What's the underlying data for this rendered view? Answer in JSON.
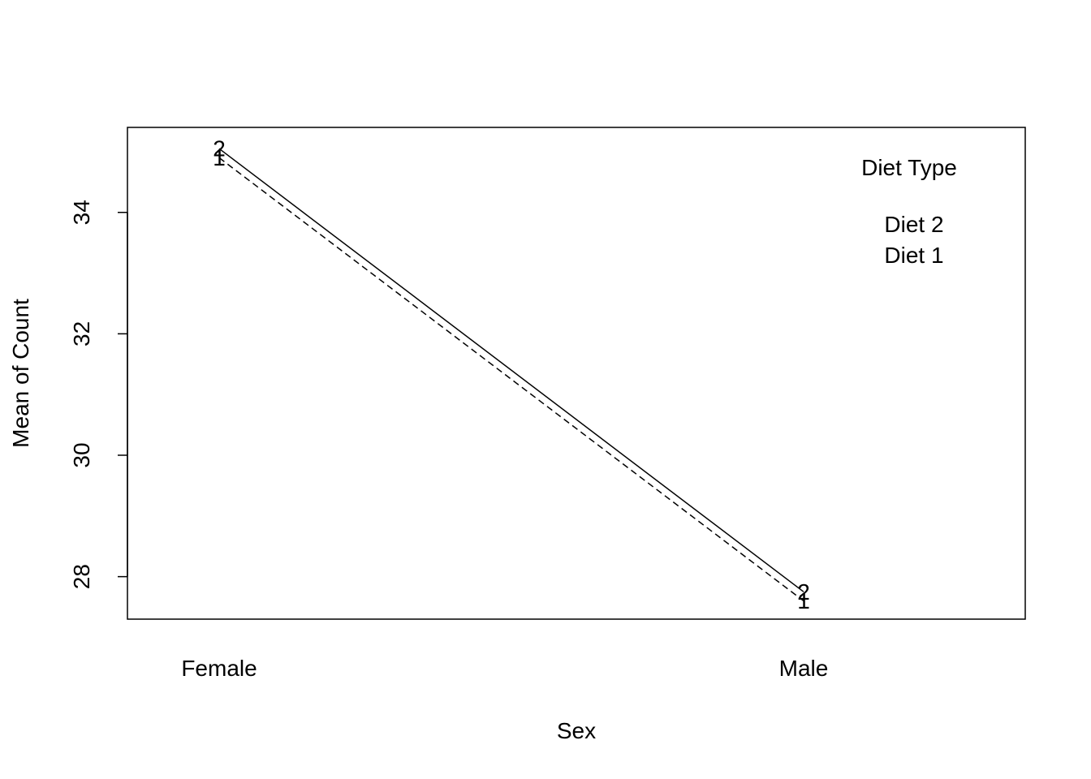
{
  "chart_data": {
    "type": "line",
    "title": "",
    "xlabel": "Sex",
    "ylabel": "Mean of Count",
    "categories": [
      "Female",
      "Male"
    ],
    "ylim": [
      27.3,
      35.4
    ],
    "y_ticks": [
      28,
      30,
      32,
      34
    ],
    "grid": false,
    "legend": {
      "title": "Diet Type",
      "position": "top-right",
      "entries": [
        "Diet 2",
        "Diet 1"
      ]
    },
    "series": [
      {
        "name": "Diet 2",
        "marker": "2",
        "line_style": "solid",
        "values": [
          35.05,
          27.75
        ]
      },
      {
        "name": "Diet 1",
        "marker": "1",
        "line_style": "dashed",
        "values": [
          34.9,
          27.6
        ]
      }
    ]
  }
}
